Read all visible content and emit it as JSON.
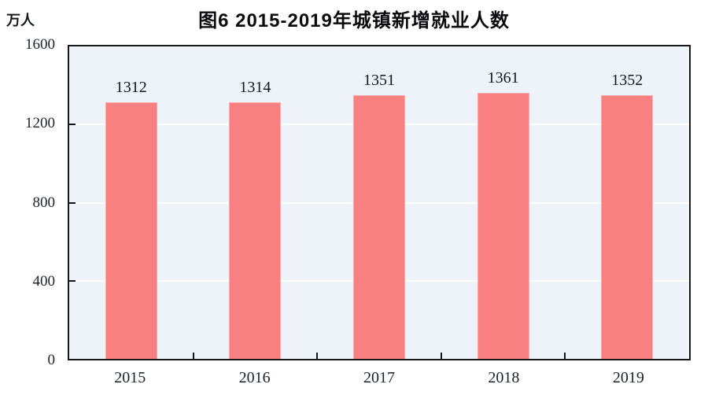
{
  "header": {
    "unit_label": "万人"
  },
  "chart_data": {
    "type": "bar",
    "title": "图6  2015-2019年城镇新增就业人数",
    "categories": [
      "2015",
      "2016",
      "2017",
      "2018",
      "2019"
    ],
    "values": [
      1312,
      1314,
      1351,
      1361,
      1352
    ],
    "xlabel": "",
    "ylabel": "万人",
    "ylim": [
      0,
      1600
    ],
    "yticks": [
      0,
      400,
      800,
      1200,
      1600
    ],
    "legend_position": "none",
    "grid": "horizontal",
    "colors": {
      "bar_fill": "#F98080",
      "bar_border": "#FBA9A9",
      "plot_background": "#EDF3F8",
      "gridline": "#FFFFFF",
      "axis_border": "#17181C",
      "text": "#1C2030"
    }
  }
}
